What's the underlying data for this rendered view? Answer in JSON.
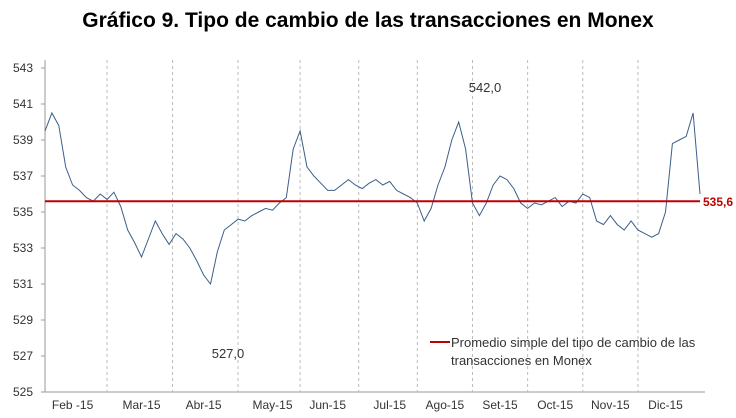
{
  "chart_data": {
    "type": "line",
    "title": "Gráfico 9. Tipo de cambio de las transacciones en Monex",
    "categories": [
      null,
      null,
      null,
      null,
      "Feb -15",
      null,
      null,
      null,
      null,
      null,
      null,
      null,
      null,
      null,
      "Mar-15",
      null,
      null,
      null,
      null,
      null,
      null,
      null,
      null,
      "Abr-15",
      null,
      null,
      null,
      null,
      null,
      null,
      null,
      null,
      null,
      "May-15",
      null,
      null,
      null,
      null,
      null,
      null,
      null,
      "Jun-15",
      null,
      null,
      null,
      null,
      null,
      null,
      null,
      null,
      "Jul-15",
      null,
      null,
      null,
      null,
      null,
      null,
      null,
      "Ago-15",
      null,
      null,
      null,
      null,
      null,
      null,
      null,
      "Set-15",
      null,
      null,
      null,
      null,
      null,
      null,
      null,
      "Oct-15",
      null,
      null,
      null,
      null,
      null,
      null,
      null,
      "Nov-15",
      null,
      null,
      null,
      null,
      null,
      null,
      null,
      "Dic-15",
      null,
      null,
      null,
      null,
      null
    ],
    "series": [
      {
        "color": "#3b5f8a",
        "values": [
          539.5,
          540.5,
          539.8,
          537.5,
          536.5,
          536.2,
          535.8,
          535.6,
          536,
          535.7,
          536.1,
          535.3,
          534,
          533.3,
          532.5,
          533.5,
          534.5,
          533.8,
          533.2,
          533.8,
          533.5,
          533,
          532.3,
          531.5,
          531,
          532.8,
          534,
          534.3,
          534.6,
          534.5,
          534.8,
          535,
          535.2,
          535.1,
          535.5,
          535.8,
          538.5,
          539.5,
          537.5,
          537,
          536.6,
          536.2,
          536.2,
          536.5,
          536.8,
          536.5,
          536.3,
          536.6,
          536.8,
          536.5,
          536.7,
          536.2,
          536,
          535.8,
          535.5,
          534.5,
          535.2,
          536.5,
          537.5,
          539,
          540,
          538.5,
          535.5,
          534.8,
          535.5,
          536.5,
          537,
          536.8,
          536.3,
          535.5,
          535.2,
          535.5,
          535.4,
          535.6,
          535.8,
          535.3,
          535.6,
          535.5,
          536,
          535.8,
          534.5,
          534.3,
          534.8,
          534.3,
          534,
          534.5,
          534,
          533.8,
          533.6,
          533.8,
          535,
          538.8,
          539,
          539.2,
          540.5,
          536
        ]
      }
    ],
    "ylim": [
      525,
      543
    ],
    "yticks": [
      525,
      527,
      529,
      531,
      533,
      535,
      537,
      539,
      541,
      543
    ],
    "reference": {
      "name": [
        "Promedio simple del tipo de cambio de las",
        "transacciones en Monex"
      ],
      "value": 535.6,
      "value_label": "535,6",
      "color": "#c00000"
    },
    "annotations": [
      {
        "text": "542,0",
        "value": 542
      },
      {
        "text": "527,0",
        "value": 527
      }
    ]
  }
}
